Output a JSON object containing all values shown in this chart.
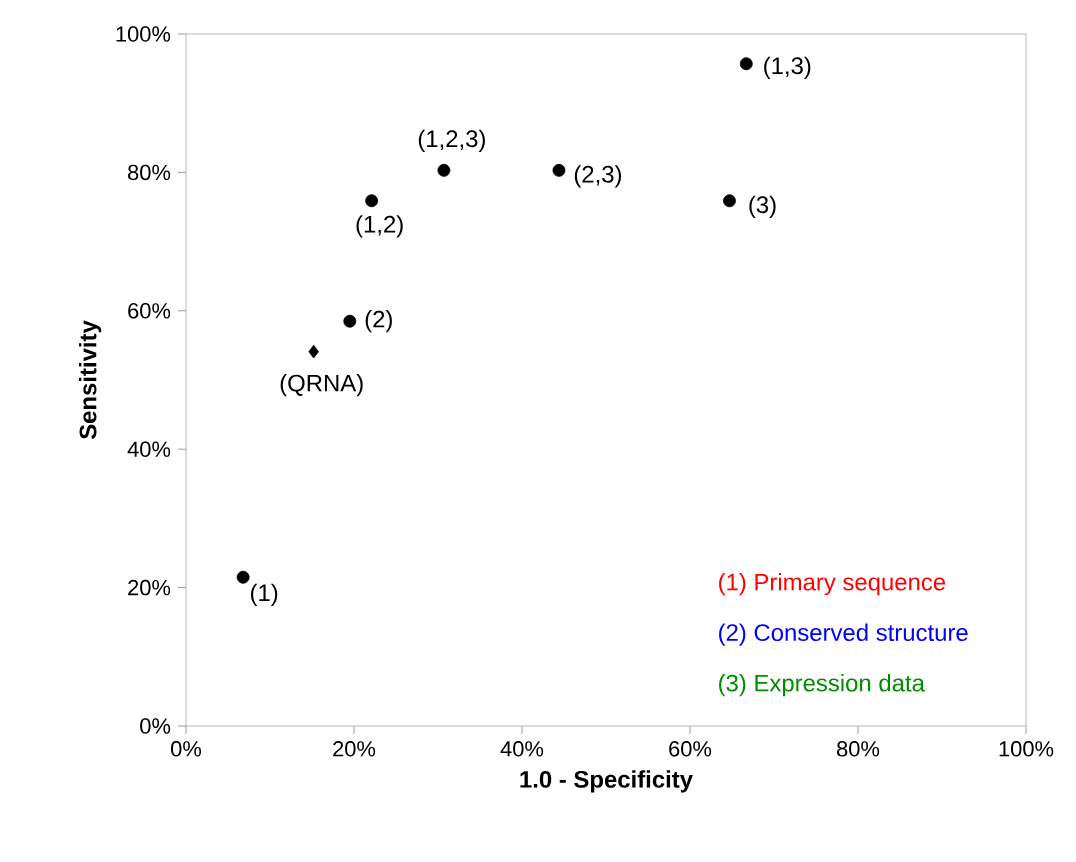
{
  "chart_data": {
    "type": "scatter",
    "xlabel": "1.0 - Specificity",
    "ylabel": "Sensitivity",
    "xlim": [
      0,
      100
    ],
    "ylim": [
      0,
      100
    ],
    "xticks": [
      {
        "value": 0,
        "label": "0%"
      },
      {
        "value": 20,
        "label": "20%"
      },
      {
        "value": 40,
        "label": "40%"
      },
      {
        "value": 60,
        "label": "60%"
      },
      {
        "value": 80,
        "label": "80%"
      },
      {
        "value": 100,
        "label": "100%"
      }
    ],
    "yticks": [
      {
        "value": 0,
        "label": "0%"
      },
      {
        "value": 20,
        "label": "20%"
      },
      {
        "value": 40,
        "label": "40%"
      },
      {
        "value": 60,
        "label": "60%"
      },
      {
        "value": 80,
        "label": "80%"
      },
      {
        "value": 100,
        "label": "100%"
      }
    ],
    "series": [
      {
        "color": "#000000",
        "marker": "circle",
        "x": [
          6.8,
          19.5,
          22.1,
          30.7,
          44.4,
          64.7,
          66.7
        ],
        "values": [
          21.5,
          58.5,
          75.9,
          80.3,
          80.3,
          75.9,
          95.7
        ]
      },
      {
        "color": "#000000",
        "marker": "diamond",
        "x": [
          15.2
        ],
        "values": [
          54.1
        ]
      }
    ],
    "annotations": [
      {
        "text": "(1)",
        "x": 6.8,
        "y": 21.5
      },
      {
        "text": "(2)",
        "x": 19.5,
        "y": 58.5
      },
      {
        "text": "(1,2)",
        "x": 22.1,
        "y": 75.9
      },
      {
        "text": "(1,2,3)",
        "x": 30.7,
        "y": 80.3
      },
      {
        "text": "(2,3)",
        "x": 44.4,
        "y": 80.3
      },
      {
        "text": "(3)",
        "x": 64.7,
        "y": 75.9
      },
      {
        "text": "(1,3)",
        "x": 66.7,
        "y": 95.7
      },
      {
        "text": "(QRNA)",
        "x": 15.2,
        "y": 54.1
      },
      "(1) Primary sequence",
      "(2) Conserved structure",
      "(3) Expression data"
    ]
  }
}
